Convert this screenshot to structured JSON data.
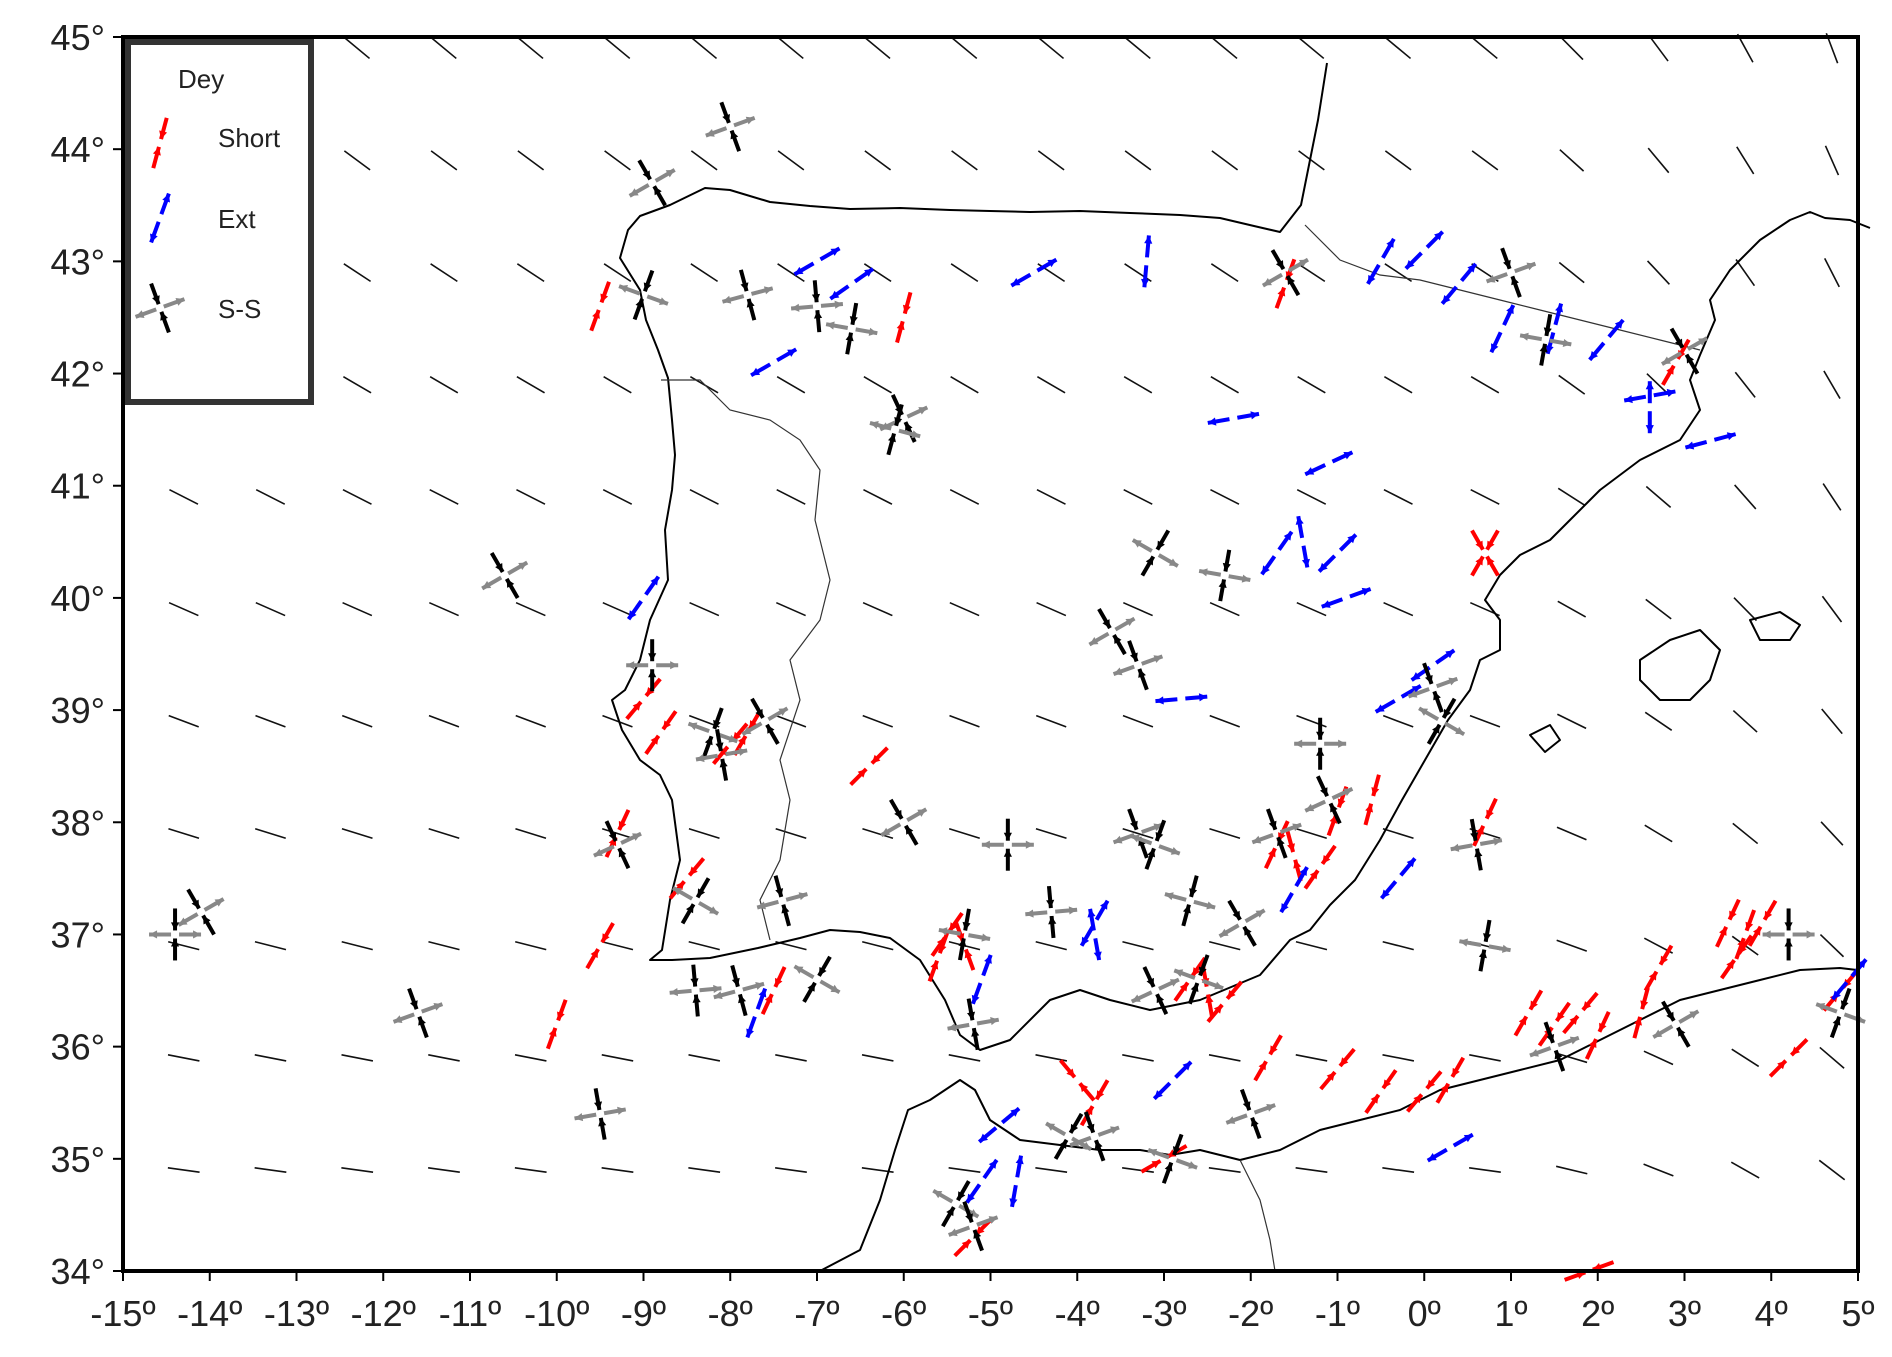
{
  "map": {
    "lon_range": [
      -15,
      5
    ],
    "lat_range": [
      34,
      45
    ],
    "lon_ticks": [
      "-15º",
      "-14º",
      "-13º",
      "-12º",
      "-11º",
      "-10º",
      "-9º",
      "-8º",
      "-7º",
      "-6º",
      "-5º",
      "-4º",
      "-3º",
      "-2º",
      "-1º",
      "0º",
      "1º",
      "2º",
      "3º",
      "4º",
      "5º"
    ],
    "lat_ticks": [
      "34°",
      "35°",
      "36°",
      "37°",
      "38°",
      "39°",
      "40°",
      "41°",
      "42°",
      "43°",
      "44°",
      "45°"
    ]
  },
  "legend": {
    "title": "Dey",
    "items": [
      {
        "label": "Short",
        "color": "#ff0000"
      },
      {
        "label": "Ext",
        "color": "#0000ff"
      },
      {
        "label": "S-S",
        "color": "#000000",
        "color2": "#888888"
      }
    ]
  },
  "colors": {
    "shortening": "#ff0000",
    "extension": "#0000ff",
    "strike_slip_compression": "#000000",
    "strike_slip_extension": "#888888"
  },
  "symbols": {
    "short": [
      [
        -9.5,
        42.6,
        -20
      ],
      [
        -6,
        42.5,
        -15
      ],
      [
        -9,
        39.1,
        -40
      ],
      [
        -8.8,
        38.8,
        -35
      ],
      [
        -7.8,
        38.8,
        -30
      ],
      [
        -6.4,
        38.5,
        -45
      ],
      [
        -9.3,
        37.9,
        -25
      ],
      [
        -9.5,
        36.9,
        -30
      ],
      [
        -10,
        36.2,
        -20
      ],
      [
        -8.5,
        37.5,
        -40
      ],
      [
        -7.5,
        36.5,
        -25
      ],
      [
        -5.5,
        37,
        -35
      ],
      [
        -5.3,
        36.9,
        20
      ],
      [
        -3.8,
        35.5,
        -30
      ],
      [
        -4,
        35.7,
        40
      ],
      [
        -2.7,
        36.6,
        -35
      ],
      [
        -2.5,
        36.5,
        10
      ],
      [
        -1.7,
        37.8,
        -25
      ],
      [
        -1.5,
        37.7,
        15
      ],
      [
        -1,
        38.1,
        -20
      ],
      [
        -0.6,
        38.2,
        -15
      ],
      [
        0.7,
        38,
        -25
      ],
      [
        0.7,
        40.4,
        30
      ],
      [
        0.7,
        40.4,
        -30
      ],
      [
        1.2,
        36.3,
        -30
      ],
      [
        1.5,
        36.2,
        -35
      ],
      [
        1.8,
        36.3,
        -40
      ],
      [
        2,
        36.1,
        -25
      ],
      [
        2.5,
        36.3,
        -15
      ],
      [
        2.7,
        36.7,
        -30
      ],
      [
        3.5,
        37.1,
        -25
      ],
      [
        3.7,
        37,
        -20
      ],
      [
        3.6,
        36.8,
        -35
      ],
      [
        3.9,
        37.1,
        -30
      ],
      [
        4.2,
        35.9,
        -45
      ],
      [
        0,
        35.6,
        -40
      ],
      [
        0.3,
        35.7,
        -30
      ],
      [
        -0.5,
        35.6,
        -35
      ],
      [
        -1,
        35.8,
        -40
      ],
      [
        -1.8,
        35.9,
        -30
      ],
      [
        -5.2,
        34.3,
        -45
      ],
      [
        -3,
        35,
        -60
      ],
      [
        1.9,
        34,
        -70
      ],
      [
        4.8,
        36.5,
        -40
      ],
      [
        -1.6,
        42.8,
        -20
      ],
      [
        2.9,
        42.1,
        -30
      ],
      [
        -1.2,
        37.6,
        -35
      ],
      [
        -8,
        38.7,
        -40
      ],
      [
        -5.6,
        36.8,
        -20
      ],
      [
        -2.3,
        36.4,
        -40
      ]
    ],
    "ext": [
      [
        -7,
        43,
        -60
      ],
      [
        -6.6,
        42.8,
        -55
      ],
      [
        -7.5,
        42.1,
        -60
      ],
      [
        -4.5,
        42.9,
        -60
      ],
      [
        -3.2,
        43,
        -5
      ],
      [
        -2.2,
        41.6,
        -80
      ],
      [
        -1.1,
        41.2,
        -65
      ],
      [
        -1.7,
        40.4,
        -35
      ],
      [
        -1.4,
        40.5,
        10
      ],
      [
        -1,
        40.4,
        -45
      ],
      [
        -0.9,
        40,
        -70
      ],
      [
        -2.8,
        39.1,
        -85
      ],
      [
        -9,
        40,
        -35
      ],
      [
        0.1,
        39.4,
        -55
      ],
      [
        -0.3,
        39.1,
        -60
      ],
      [
        0,
        43.1,
        -45
      ],
      [
        -0.5,
        43,
        -30
      ],
      [
        0.4,
        42.8,
        -40
      ],
      [
        0.9,
        42.4,
        -25
      ],
      [
        1.5,
        42.4,
        -15
      ],
      [
        2.1,
        42.3,
        -40
      ],
      [
        2.6,
        41.8,
        -80
      ],
      [
        2.6,
        41.7,
        0
      ],
      [
        3.3,
        41.4,
        -75
      ],
      [
        -0.3,
        37.5,
        -40
      ],
      [
        -1.5,
        37.4,
        -30
      ],
      [
        -3.8,
        37.1,
        -30
      ],
      [
        -3.8,
        37,
        10
      ],
      [
        -5.1,
        36.6,
        -20
      ],
      [
        -4.9,
        35.3,
        -50
      ],
      [
        -5.1,
        34.8,
        -35
      ],
      [
        -4.7,
        34.8,
        -10
      ],
      [
        -2.9,
        35.7,
        -45
      ],
      [
        0.3,
        35.1,
        -60
      ],
      [
        4.9,
        36.6,
        -40
      ],
      [
        -7.7,
        36.3,
        -20
      ]
    ],
    "ss": [
      [
        -8,
        44.2,
        20
      ],
      [
        -8.9,
        43.7,
        30
      ],
      [
        -9,
        42.7,
        -20
      ],
      [
        -7.8,
        42.7,
        15
      ],
      [
        -6.6,
        42.4,
        -10
      ],
      [
        -7,
        42.6,
        5
      ],
      [
        -6,
        41.6,
        25
      ],
      [
        -6.1,
        41.5,
        -15
      ],
      [
        -10.6,
        40.2,
        30
      ],
      [
        -14.1,
        37.2,
        30
      ],
      [
        -14.4,
        37,
        0
      ],
      [
        -11.6,
        36.3,
        20
      ],
      [
        -9.5,
        35.4,
        10
      ],
      [
        -8.9,
        39.4,
        0
      ],
      [
        -8.2,
        38.8,
        -20
      ],
      [
        -8.1,
        38.6,
        10
      ],
      [
        -7.6,
        38.9,
        30
      ],
      [
        -9.3,
        37.8,
        25
      ],
      [
        -8.4,
        37.3,
        -30
      ],
      [
        -7.9,
        36.5,
        15
      ],
      [
        -8.4,
        36.5,
        5
      ],
      [
        -7,
        36.6,
        -30
      ],
      [
        -7.4,
        37.3,
        15
      ],
      [
        -6,
        38,
        30
      ],
      [
        -4.8,
        37.8,
        0
      ],
      [
        -3.3,
        37.9,
        20
      ],
      [
        -3.1,
        37.8,
        -20
      ],
      [
        -4.3,
        37.2,
        5
      ],
      [
        -5.3,
        37,
        -10
      ],
      [
        -5.2,
        36.2,
        10
      ],
      [
        -5.4,
        34.6,
        -30
      ],
      [
        -5.2,
        34.4,
        20
      ],
      [
        -4.1,
        35.2,
        -30
      ],
      [
        -3.8,
        35.2,
        20
      ],
      [
        -2.9,
        35,
        -20
      ],
      [
        -3.1,
        36.5,
        25
      ],
      [
        -2.6,
        36.6,
        -20
      ],
      [
        -2.1,
        37.1,
        30
      ],
      [
        -1.7,
        37.9,
        20
      ],
      [
        -1.2,
        38.7,
        0
      ],
      [
        -1.1,
        38.2,
        25
      ],
      [
        0.1,
        39.2,
        20
      ],
      [
        0.2,
        38.9,
        -30
      ],
      [
        0.6,
        37.8,
        10
      ],
      [
        0.7,
        36.9,
        -10
      ],
      [
        1.5,
        36,
        20
      ],
      [
        2.9,
        36.2,
        30
      ],
      [
        4.2,
        37,
        0
      ],
      [
        -2,
        35.4,
        20
      ],
      [
        -3.1,
        40.4,
        -30
      ],
      [
        -2.3,
        40.2,
        -10
      ],
      [
        -3.6,
        39.7,
        30
      ],
      [
        -3.3,
        39.4,
        20
      ],
      [
        -1.6,
        42.9,
        30
      ],
      [
        1,
        42.9,
        20
      ],
      [
        1.4,
        42.3,
        -10
      ],
      [
        3,
        42.2,
        30
      ],
      [
        4.8,
        36.3,
        -20
      ],
      [
        -2.7,
        37.3,
        -15
      ]
    ]
  },
  "trend_grid": {
    "lon_step": 1,
    "lat_step": 1,
    "lon_start": -14.3,
    "lat_start": 34.9
  }
}
